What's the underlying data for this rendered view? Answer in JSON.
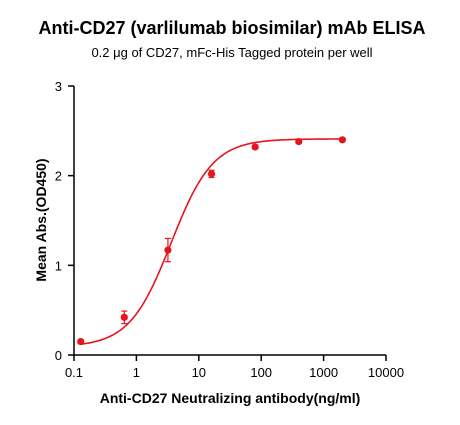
{
  "chart_data": {
    "type": "scatter",
    "title": "Anti-CD27 (varlilumab biosimilar) mAb ELISA",
    "subtitle": "0.2 μg of CD27, mFc-His Tagged protein per well",
    "xlabel": "Anti-CD27 Neutralizing antibody(ng/ml)",
    "ylabel": "Mean Abs.(OD450)",
    "x_scale": "log",
    "xlim": [
      0.1,
      10000
    ],
    "ylim": [
      0,
      3
    ],
    "x_ticks": [
      {
        "value": 0.1,
        "label": "0.1"
      },
      {
        "value": 1,
        "label": "1"
      },
      {
        "value": 10,
        "label": "10"
      },
      {
        "value": 100,
        "label": "100"
      },
      {
        "value": 1000,
        "label": "1000"
      },
      {
        "value": 10000,
        "label": "10000"
      }
    ],
    "y_ticks": [
      {
        "value": 0,
        "label": "0"
      },
      {
        "value": 1,
        "label": "1"
      },
      {
        "value": 2,
        "label": "2"
      },
      {
        "value": 3,
        "label": "3"
      }
    ],
    "series": [
      {
        "color": "#e8141b",
        "points": [
          {
            "x": 0.128,
            "y": 0.15,
            "err": 0.02
          },
          {
            "x": 0.64,
            "y": 0.42,
            "err": 0.07
          },
          {
            "x": 3.2,
            "y": 1.17,
            "err": 0.13
          },
          {
            "x": 16,
            "y": 2.02,
            "err": 0.04
          },
          {
            "x": 80,
            "y": 2.32,
            "err": 0.02
          },
          {
            "x": 400,
            "y": 2.38,
            "err": 0.02
          },
          {
            "x": 2000,
            "y": 2.4,
            "err": 0.02
          }
        ],
        "fit": {
          "model": "4PL",
          "bottom": 0.09,
          "top": 2.41,
          "ec50": 3.6,
          "hill": 1.3
        }
      }
    ],
    "grid": false,
    "legend": "none"
  }
}
